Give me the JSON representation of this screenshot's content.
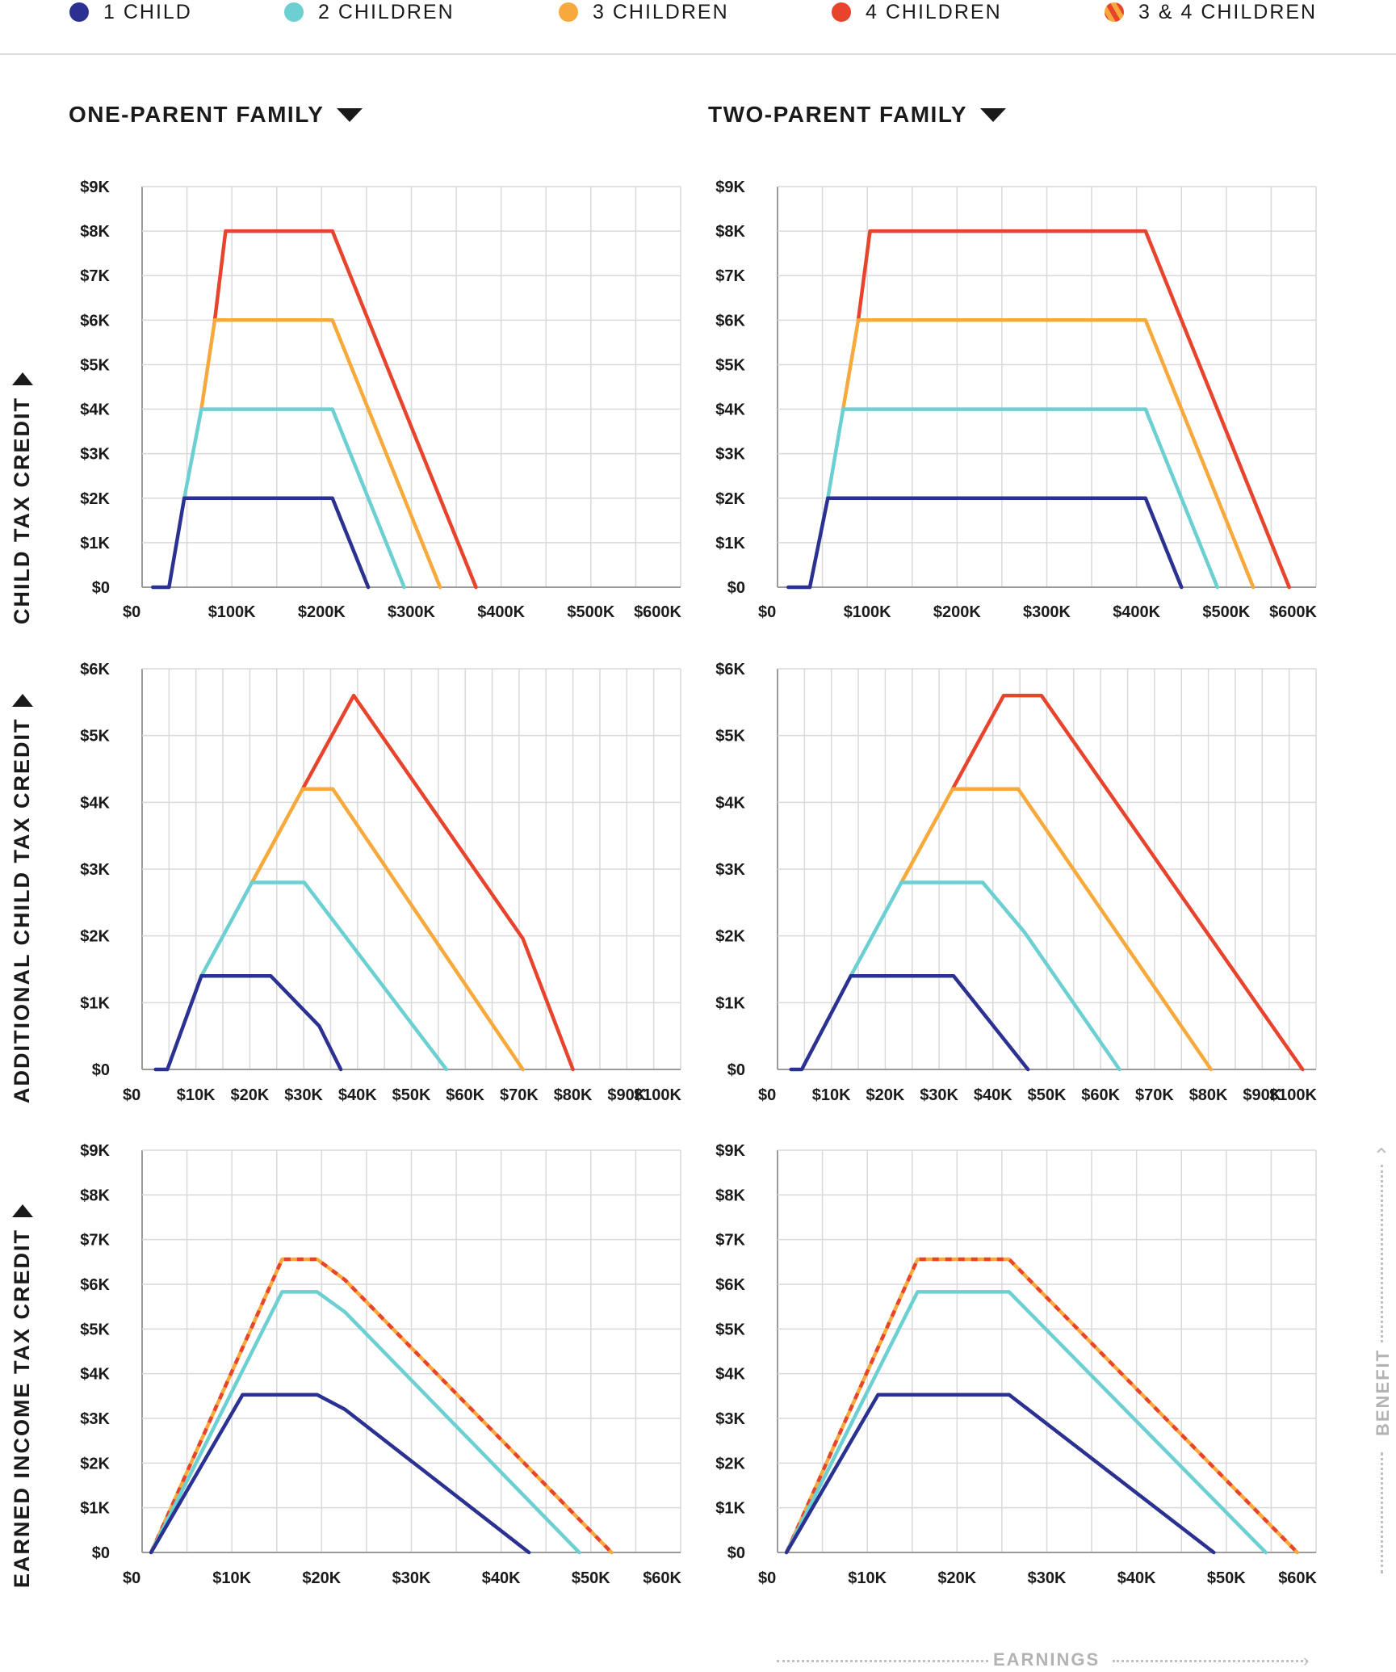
{
  "legend": {
    "items": [
      {
        "label": "1 CHILD",
        "color": "#2b3191"
      },
      {
        "label": "2 CHILDREN",
        "color": "#6ccfd1"
      },
      {
        "label": "3 CHILDREN",
        "color": "#f7a93b"
      },
      {
        "label": "4 CHILDREN",
        "color": "#e8442d"
      },
      {
        "label": "3 & 4 CHILDREN",
        "color": "striped"
      }
    ]
  },
  "columns": {
    "one_parent": "ONE-PARENT FAMILY",
    "two_parent": "TWO-PARENT FAMILY"
  },
  "rows": {
    "ctc": "CHILD TAX CREDIT",
    "actc": "ADDITIONAL CHILD TAX CREDIT",
    "eitc": "EARNED INCOME TAX CREDIT"
  },
  "axis_captions": {
    "x": "EARNINGS",
    "y": "BENEFIT"
  },
  "chart_data": [
    {
      "id": "ctc-one-parent",
      "type": "line",
      "title": "Child Tax Credit — One-Parent Family",
      "xlabel": "Earnings",
      "ylabel": "Benefit",
      "xlim": [
        0,
        600
      ],
      "ylim": [
        0,
        9
      ],
      "x_ticks": [
        "$0",
        "$100K",
        "$200K",
        "$300K",
        "$400K",
        "$500K",
        "$600K"
      ],
      "y_ticks": [
        "$0",
        "$1K",
        "$2K",
        "$3K",
        "$4K",
        "$5K",
        "$6K",
        "$7K",
        "$8K",
        "$9K"
      ],
      "series": [
        {
          "name": "4 CHILDREN",
          "color": "#e8442d",
          "x": [
            81,
            93,
            212,
            372
          ],
          "y": [
            6,
            8,
            8,
            0
          ]
        },
        {
          "name": "3 CHILDREN",
          "color": "#f7a93b",
          "x": [
            66,
            81,
            212,
            332
          ],
          "y": [
            4,
            6,
            6,
            0
          ]
        },
        {
          "name": "2 CHILDREN",
          "color": "#6ccfd1",
          "x": [
            47,
            66,
            212,
            292
          ],
          "y": [
            2,
            4,
            4,
            0
          ]
        },
        {
          "name": "1 CHILD",
          "color": "#2b3191",
          "x": [
            12,
            30,
            47,
            212,
            252
          ],
          "y": [
            0,
            0,
            2,
            2,
            0
          ]
        }
      ]
    },
    {
      "id": "ctc-two-parent",
      "type": "line",
      "title": "Child Tax Credit — Two-Parent Family",
      "xlabel": "Earnings",
      "ylabel": "Benefit",
      "xlim": [
        0,
        600
      ],
      "ylim": [
        0,
        9
      ],
      "x_ticks": [
        "$0",
        "$100K",
        "$200K",
        "$300K",
        "$400K",
        "$500K",
        "$600K"
      ],
      "y_ticks": [
        "$0",
        "$1K",
        "$2K",
        "$3K",
        "$4K",
        "$5K",
        "$6K",
        "$7K",
        "$8K",
        "$9K"
      ],
      "series": [
        {
          "name": "4 CHILDREN",
          "color": "#e8442d",
          "x": [
            90,
            103,
            410,
            570
          ],
          "y": [
            6,
            8,
            8,
            0
          ]
        },
        {
          "name": "3 CHILDREN",
          "color": "#f7a93b",
          "x": [
            73,
            90,
            410,
            530
          ],
          "y": [
            4,
            6,
            6,
            0
          ]
        },
        {
          "name": "2 CHILDREN",
          "color": "#6ccfd1",
          "x": [
            56,
            73,
            410,
            490
          ],
          "y": [
            2,
            4,
            4,
            0
          ]
        },
        {
          "name": "1 CHILD",
          "color": "#2b3191",
          "x": [
            12,
            36,
            56,
            410,
            450
          ],
          "y": [
            0,
            0,
            2,
            2,
            0
          ]
        }
      ]
    },
    {
      "id": "actc-one-parent",
      "type": "line",
      "title": "Additional Child Tax Credit — One-Parent Family",
      "xlabel": "Earnings",
      "ylabel": "Benefit",
      "xlim": [
        0,
        100
      ],
      "ylim": [
        0,
        6
      ],
      "x_ticks": [
        "$0",
        "$10K",
        "$20K",
        "$30K",
        "$40K",
        "$50K",
        "$60K",
        "$70K",
        "$80K",
        "$90K",
        "$100K"
      ],
      "y_ticks": [
        "$0",
        "$1K",
        "$2K",
        "$3K",
        "$4K",
        "$5K",
        "$6K"
      ],
      "series": [
        {
          "name": "4 CHILDREN",
          "color": "#e8442d",
          "x": [
            29.8,
            39.3,
            70.7,
            80
          ],
          "y": [
            4.2,
            5.6,
            1.96,
            0
          ]
        },
        {
          "name": "3 CHILDREN",
          "color": "#f7a93b",
          "x": [
            20.4,
            29.8,
            35.4,
            70.7
          ],
          "y": [
            2.8,
            4.2,
            4.2,
            0
          ]
        },
        {
          "name": "2 CHILDREN",
          "color": "#6ccfd1",
          "x": [
            11,
            20.4,
            30.1,
            56.5
          ],
          "y": [
            1.4,
            2.8,
            2.8,
            0
          ]
        },
        {
          "name": "1 CHILD",
          "color": "#2b3191",
          "x": [
            2.5,
            4.7,
            11,
            23.9,
            32.9,
            36.9
          ],
          "y": [
            0,
            0,
            1.4,
            1.4,
            0.65,
            0
          ]
        }
      ]
    },
    {
      "id": "actc-two-parent",
      "type": "line",
      "title": "Additional Child Tax Credit — Two-Parent Family",
      "xlabel": "Earnings",
      "ylabel": "Benefit",
      "xlim": [
        0,
        100
      ],
      "ylim": [
        0,
        6
      ],
      "x_ticks": [
        "$0",
        "$10K",
        "$20K",
        "$30K",
        "$40K",
        "$50K",
        "$60K",
        "$70K",
        "$80K",
        "$90K",
        "$100K"
      ],
      "y_ticks": [
        "$0",
        "$1K",
        "$2K",
        "$3K",
        "$4K",
        "$5K",
        "$6K"
      ],
      "series": [
        {
          "name": "4 CHILDREN",
          "color": "#e8442d",
          "x": [
            32.5,
            42,
            49,
            97.5
          ],
          "y": [
            4.2,
            5.6,
            5.6,
            0
          ]
        },
        {
          "name": "3 CHILDREN",
          "color": "#f7a93b",
          "x": [
            23,
            32.5,
            44.7,
            80.5
          ],
          "y": [
            2.8,
            4.2,
            4.2,
            0
          ]
        },
        {
          "name": "2 CHILDREN",
          "color": "#6ccfd1",
          "x": [
            13.6,
            23,
            38.1,
            45.9,
            63.5
          ],
          "y": [
            1.4,
            2.8,
            2.8,
            2.05,
            0
          ]
        },
        {
          "name": "1 CHILD",
          "color": "#2b3191",
          "x": [
            2.5,
            4.5,
            13.6,
            32.7,
            46.5
          ],
          "y": [
            0,
            0,
            1.4,
            1.4,
            0
          ]
        }
      ]
    },
    {
      "id": "eitc-one-parent",
      "type": "line",
      "title": "Earned Income Tax Credit — One-Parent Family",
      "xlabel": "Earnings",
      "ylabel": "Benefit",
      "xlim": [
        0,
        60
      ],
      "ylim": [
        0,
        9
      ],
      "x_ticks": [
        "$0",
        "$10K",
        "$20K",
        "$30K",
        "$40K",
        "$50K",
        "$60K"
      ],
      "y_ticks": [
        "$0",
        "$1K",
        "$2K",
        "$3K",
        "$4K",
        "$5K",
        "$6K",
        "$7K",
        "$8K",
        "$9K"
      ],
      "series": [
        {
          "name": "3 & 4 CHILDREN",
          "color": "striped",
          "x": [
            1,
            15.6,
            19.5,
            22.6,
            52.3
          ],
          "y": [
            0,
            6.56,
            6.56,
            6.1,
            0
          ]
        },
        {
          "name": "2 CHILDREN",
          "color": "#6ccfd1",
          "x": [
            1,
            15.6,
            19.5,
            22.6,
            48.7
          ],
          "y": [
            0,
            5.83,
            5.83,
            5.38,
            0
          ]
        },
        {
          "name": "1 CHILD",
          "color": "#2b3191",
          "x": [
            1,
            11.2,
            19.5,
            22.6,
            43.1
          ],
          "y": [
            0,
            3.53,
            3.53,
            3.2,
            0
          ]
        }
      ]
    },
    {
      "id": "eitc-two-parent",
      "type": "line",
      "title": "Earned Income Tax Credit — Two-Parent Family",
      "xlabel": "Earnings",
      "ylabel": "Benefit",
      "xlim": [
        0,
        60
      ],
      "ylim": [
        0,
        9
      ],
      "x_ticks": [
        "$0",
        "$10K",
        "$20K",
        "$30K",
        "$40K",
        "$50K",
        "$60K"
      ],
      "y_ticks": [
        "$0",
        "$1K",
        "$2K",
        "$3K",
        "$4K",
        "$5K",
        "$6K",
        "$7K",
        "$8K",
        "$9K"
      ],
      "series": [
        {
          "name": "3 & 4 CHILDREN",
          "color": "striped",
          "x": [
            1,
            15.6,
            25.8,
            57.9
          ],
          "y": [
            0,
            6.56,
            6.56,
            0
          ]
        },
        {
          "name": "2 CHILDREN",
          "color": "#6ccfd1",
          "x": [
            1,
            15.6,
            25.8,
            54.4
          ],
          "y": [
            0,
            5.83,
            5.83,
            0
          ]
        },
        {
          "name": "1 CHILD",
          "color": "#2b3191",
          "x": [
            1,
            11.2,
            25.8,
            48.6
          ],
          "y": [
            0,
            3.53,
            3.53,
            0
          ]
        }
      ]
    }
  ]
}
